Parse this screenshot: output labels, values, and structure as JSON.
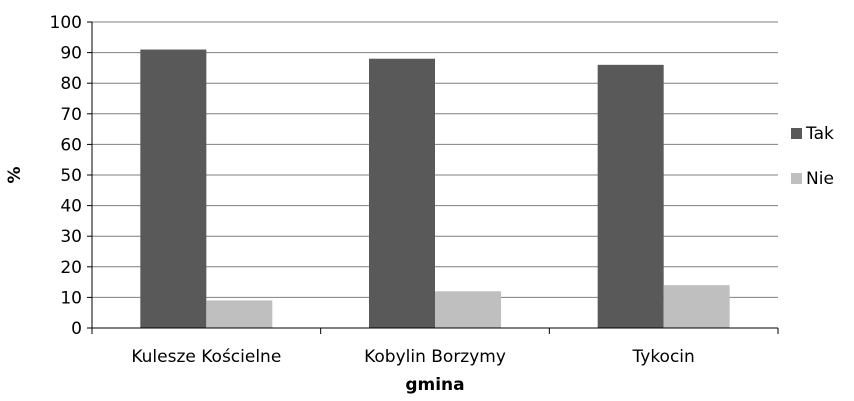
{
  "chart_data": {
    "type": "bar",
    "categories": [
      "Kulesze Kościelne",
      "Kobylin Borzymy",
      "Tykocin"
    ],
    "series": [
      {
        "name": "Tak",
        "values": [
          91,
          88,
          86
        ],
        "color": "#595959"
      },
      {
        "name": "Nie",
        "values": [
          9,
          12,
          14
        ],
        "color": "#bfbfbf"
      }
    ],
    "xlabel": "gmina",
    "ylabel": "%",
    "ylim": [
      0,
      100
    ],
    "yticks": [
      "0",
      "10",
      "20",
      "30",
      "40",
      "50",
      "60",
      "70",
      "80",
      "90",
      "100"
    ],
    "grid": true,
    "legend_position": "right"
  }
}
